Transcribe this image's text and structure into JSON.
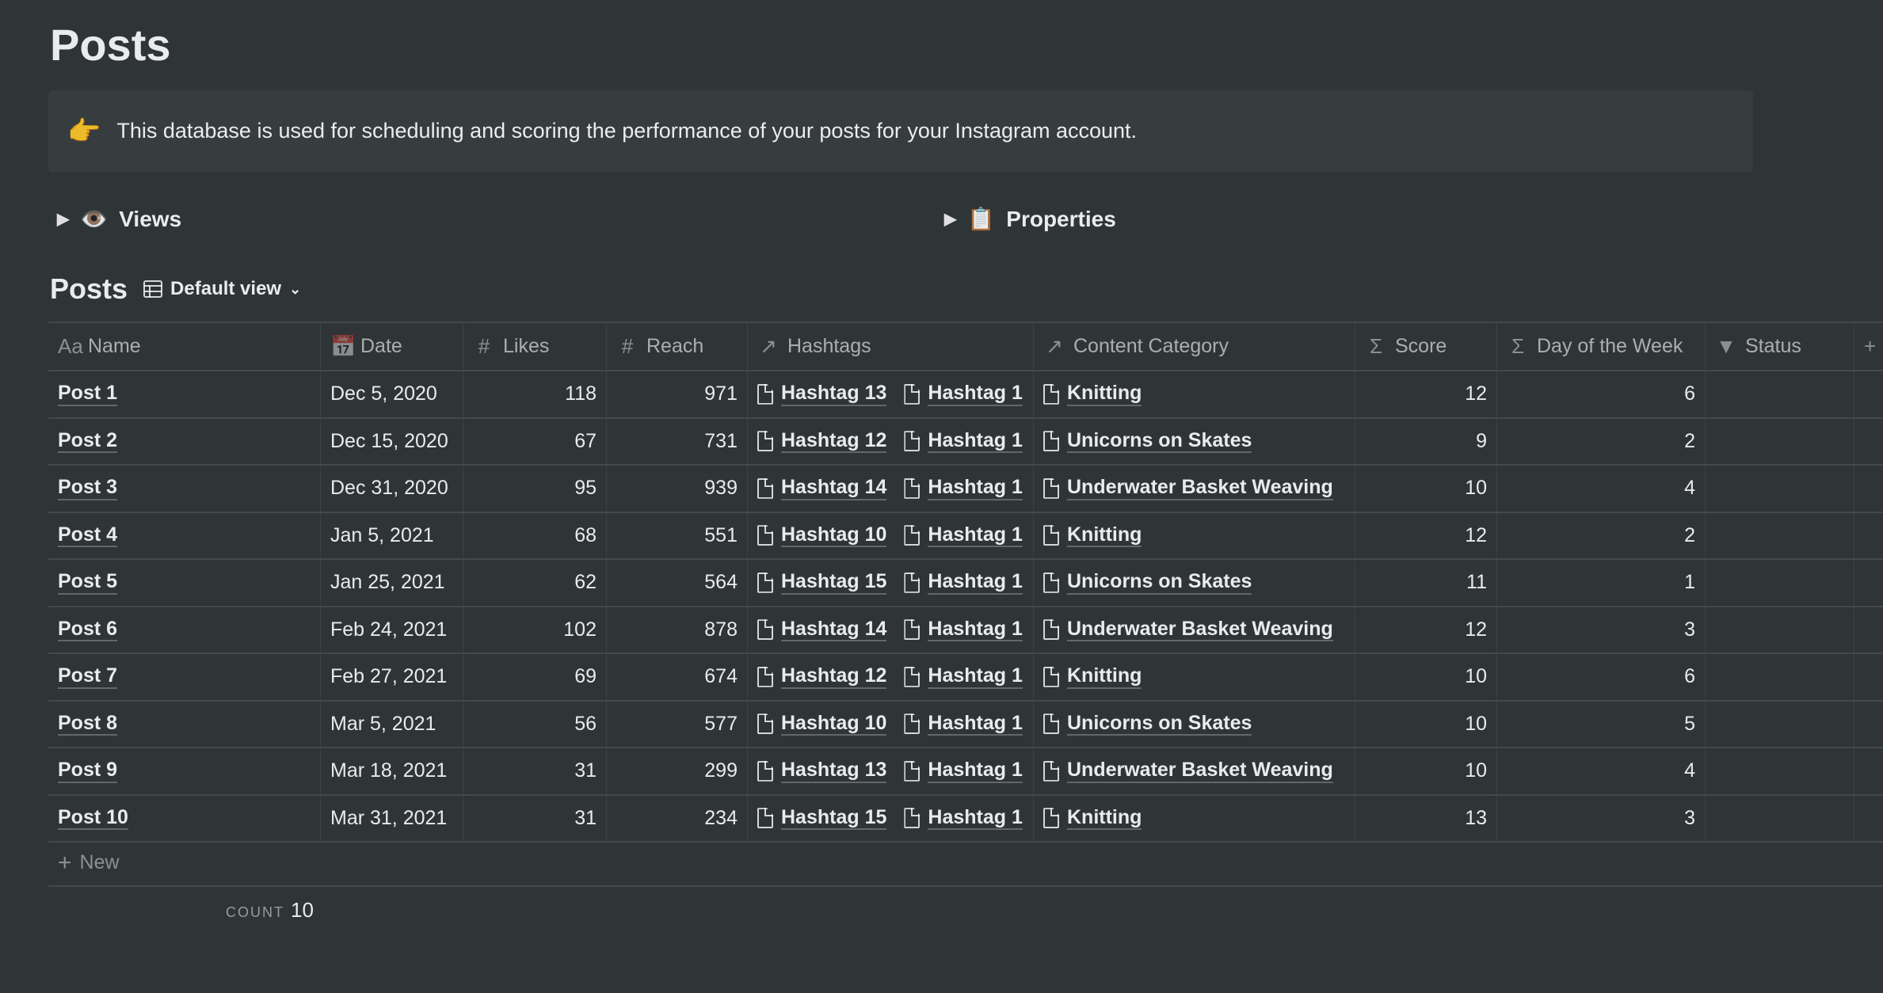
{
  "page": {
    "title": "Posts"
  },
  "callout": {
    "icon": "👉",
    "text": "This database is used for scheduling and scoring the performance of your posts for your Instagram account."
  },
  "toggles": {
    "views": {
      "icon": "👁️",
      "label": "Views"
    },
    "properties": {
      "icon": "📋",
      "label": "Properties"
    }
  },
  "database": {
    "title": "Posts",
    "view_label": "Default view"
  },
  "columns": [
    {
      "icon": "Aa",
      "label": "Name"
    },
    {
      "icon": "📅",
      "label": "Date"
    },
    {
      "icon": "#",
      "label": "Likes"
    },
    {
      "icon": "#",
      "label": "Reach"
    },
    {
      "icon": "↗",
      "label": "Hashtags"
    },
    {
      "icon": "↗",
      "label": "Content Category"
    },
    {
      "icon": "Σ",
      "label": "Score"
    },
    {
      "icon": "Σ",
      "label": "Day of the Week"
    },
    {
      "icon": "▼",
      "label": "Status"
    },
    {
      "icon": "+",
      "label": ""
    }
  ],
  "rows": [
    {
      "name": "Post 1",
      "date": "Dec 5, 2020",
      "likes": "118",
      "reach": "971",
      "hashtags": [
        "Hashtag 13",
        "Hashtag 1"
      ],
      "category": "Knitting",
      "score": "12",
      "day": "6"
    },
    {
      "name": "Post 2",
      "date": "Dec 15, 2020",
      "likes": "67",
      "reach": "731",
      "hashtags": [
        "Hashtag 12",
        "Hashtag 1"
      ],
      "category": "Unicorns on Skates",
      "score": "9",
      "day": "2"
    },
    {
      "name": "Post 3",
      "date": "Dec 31, 2020",
      "likes": "95",
      "reach": "939",
      "hashtags": [
        "Hashtag 14",
        "Hashtag 1"
      ],
      "category": "Underwater Basket Weaving",
      "score": "10",
      "day": "4"
    },
    {
      "name": "Post 4",
      "date": "Jan 5, 2021",
      "likes": "68",
      "reach": "551",
      "hashtags": [
        "Hashtag 10",
        "Hashtag 1"
      ],
      "category": "Knitting",
      "score": "12",
      "day": "2"
    },
    {
      "name": "Post 5",
      "date": "Jan 25, 2021",
      "likes": "62",
      "reach": "564",
      "hashtags": [
        "Hashtag 15",
        "Hashtag 1"
      ],
      "category": "Unicorns on Skates",
      "score": "11",
      "day": "1"
    },
    {
      "name": "Post 6",
      "date": "Feb 24, 2021",
      "likes": "102",
      "reach": "878",
      "hashtags": [
        "Hashtag 14",
        "Hashtag 1"
      ],
      "category": "Underwater Basket Weaving",
      "score": "12",
      "day": "3"
    },
    {
      "name": "Post 7",
      "date": "Feb 27, 2021",
      "likes": "69",
      "reach": "674",
      "hashtags": [
        "Hashtag 12",
        "Hashtag 1"
      ],
      "category": "Knitting",
      "score": "10",
      "day": "6"
    },
    {
      "name": "Post 8",
      "date": "Mar 5, 2021",
      "likes": "56",
      "reach": "577",
      "hashtags": [
        "Hashtag 10",
        "Hashtag 1"
      ],
      "category": "Unicorns on Skates",
      "score": "10",
      "day": "5"
    },
    {
      "name": "Post 9",
      "date": "Mar 18, 2021",
      "likes": "31",
      "reach": "299",
      "hashtags": [
        "Hashtag 13",
        "Hashtag 1"
      ],
      "category": "Underwater Basket Weaving",
      "score": "10",
      "day": "4"
    },
    {
      "name": "Post 10",
      "date": "Mar 31, 2021",
      "likes": "31",
      "reach": "234",
      "hashtags": [
        "Hashtag 15",
        "Hashtag 1"
      ],
      "category": "Knitting",
      "score": "13",
      "day": "3"
    }
  ],
  "new_row": {
    "icon": "+",
    "label": "New"
  },
  "footer": {
    "count_label": "COUNT",
    "count_value": "10"
  }
}
